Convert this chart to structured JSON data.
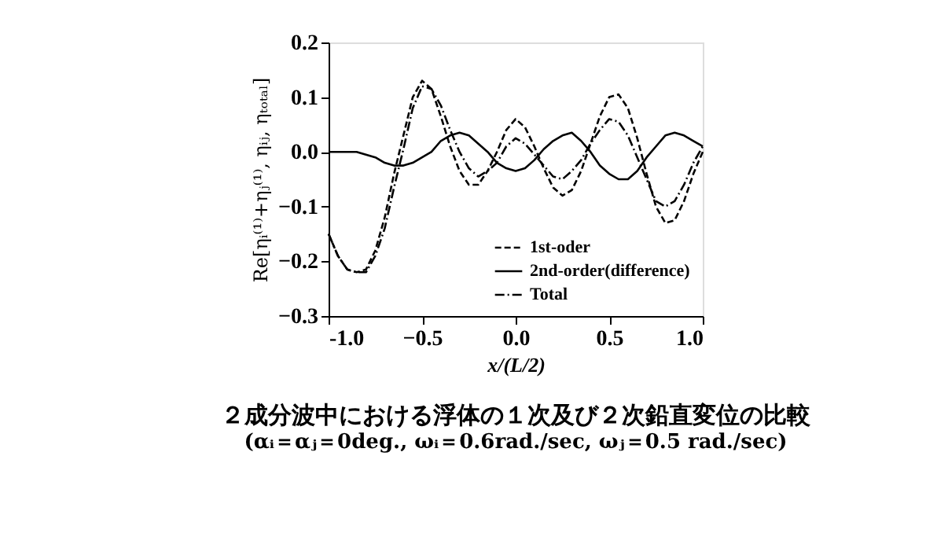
{
  "chart_data": {
    "type": "line",
    "title": "２成分波中における浮体の１次及び２次鉛直変位の比較",
    "subtitle": "(αᵢ＝αⱼ＝0deg., ωᵢ＝0.6rad./sec, ωⱼ＝0.5 rad./sec)",
    "xlabel": "x/(L/2)",
    "ylabel": "Re[ηᵢ⁽¹⁾+ηⱼ⁽¹⁾, ηᵢⱼ, ηₜₒₜₐₗ]",
    "x": [
      -1,
      -0.95,
      -0.9,
      -0.85,
      -0.8,
      -0.75,
      -0.7,
      -0.65,
      -0.6,
      -0.55,
      -0.5,
      -0.45,
      -0.4,
      -0.35,
      -0.3,
      -0.25,
      -0.2,
      -0.15,
      -0.1,
      -0.05,
      0,
      0.05,
      0.1,
      0.15,
      0.2,
      0.25,
      0.3,
      0.35,
      0.4,
      0.45,
      0.5,
      0.55,
      0.6,
      0.65,
      0.7,
      0.75,
      0.8,
      0.85,
      0.9,
      0.95,
      1
    ],
    "series": [
      {
        "name": "1st-oder",
        "color": "#000000",
        "line_style": "dashed",
        "values": [
          -0.15,
          -0.19,
          -0.215,
          -0.22,
          -0.215,
          -0.18,
          -0.12,
          -0.04,
          0.03,
          0.1,
          0.13,
          0.115,
          0.065,
          0.01,
          -0.035,
          -0.06,
          -0.06,
          -0.035,
          0.0,
          0.04,
          0.06,
          0.045,
          0.01,
          -0.03,
          -0.065,
          -0.08,
          -0.07,
          -0.035,
          0.015,
          0.065,
          0.1,
          0.105,
          0.08,
          0.025,
          -0.04,
          -0.1,
          -0.13,
          -0.125,
          -0.09,
          -0.04,
          0.0
        ]
      },
      {
        "name": "2nd-order(difference)",
        "color": "#000000",
        "line_style": "solid",
        "values": [
          0.0,
          0.0,
          0.0,
          0.0,
          -0.005,
          -0.01,
          -0.02,
          -0.025,
          -0.025,
          -0.02,
          -0.01,
          0.0,
          0.02,
          0.03,
          0.035,
          0.03,
          0.015,
          0.0,
          -0.02,
          -0.03,
          -0.035,
          -0.03,
          -0.015,
          0.005,
          0.02,
          0.03,
          0.035,
          0.02,
          0.0,
          -0.025,
          -0.04,
          -0.05,
          -0.05,
          -0.035,
          -0.01,
          0.01,
          0.03,
          0.035,
          0.03,
          0.02,
          0.01
        ]
      },
      {
        "name": "Total",
        "color": "#000000",
        "line_style": "dashdot",
        "values": [
          -0.15,
          -0.19,
          -0.215,
          -0.22,
          -0.22,
          -0.19,
          -0.14,
          -0.065,
          0.005,
          0.08,
          0.12,
          0.115,
          0.085,
          0.04,
          0.0,
          -0.03,
          -0.045,
          -0.035,
          -0.02,
          0.01,
          0.025,
          0.015,
          -0.005,
          -0.025,
          -0.045,
          -0.05,
          -0.035,
          -0.015,
          0.015,
          0.04,
          0.06,
          0.055,
          0.03,
          -0.01,
          -0.05,
          -0.09,
          -0.1,
          -0.09,
          -0.06,
          -0.02,
          0.01
        ]
      }
    ],
    "xlim": [
      -1.0,
      1.0
    ],
    "xticks": [
      {
        "value": -1,
        "label": "-1.0"
      },
      -0.5,
      {
        "value": 0,
        "label": "0.0"
      },
      0.5,
      {
        "value": 1,
        "label": "1.0"
      }
    ],
    "ylim": [
      -0.3,
      0.2
    ],
    "yticks": [
      -0.3,
      -0.2,
      -0.1,
      {
        "value": 0,
        "label": "0.0"
      },
      0.1,
      0.2
    ],
    "grid": false,
    "legend": "bottom right",
    "marker": "none"
  }
}
